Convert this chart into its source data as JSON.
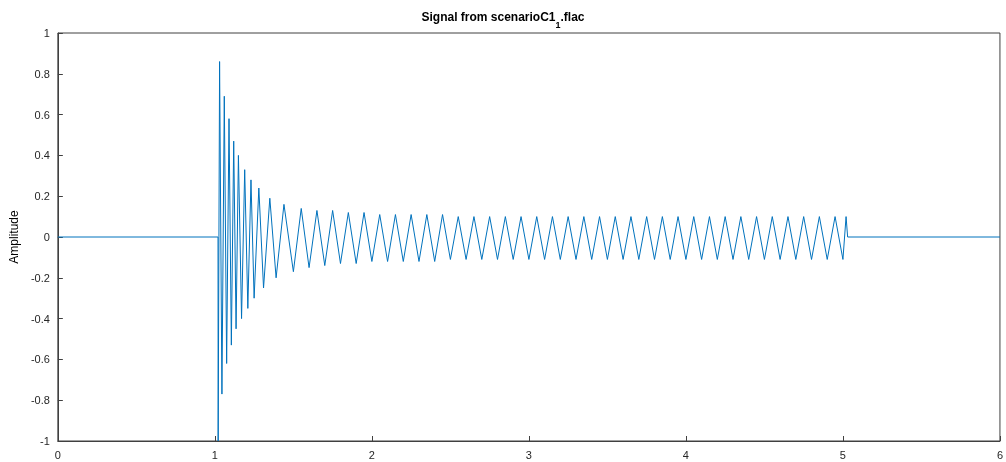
{
  "chart_data": {
    "type": "line",
    "title": "Signal from scenarioC1$_{1}$.flac",
    "ylabel": "Amplitude",
    "xlim": [
      0,
      6
    ],
    "xticks": [
      0,
      1,
      2,
      3,
      4,
      5,
      6
    ],
    "ylim": [
      -1,
      1
    ],
    "yticks": [
      -1,
      -0.8,
      -0.6,
      -0.4,
      -0.2,
      0,
      0.2,
      0.4,
      0.6,
      0.8,
      1
    ],
    "marker": "none",
    "line_style": "solid",
    "series": [
      {
        "color": "#0072bd",
        "x": [
          0,
          1.02,
          1.021,
          1.03,
          1.045,
          1.06,
          1.075,
          1.09,
          1.105,
          1.12,
          1.135,
          1.15,
          1.17,
          1.19,
          1.21,
          1.23,
          1.25,
          1.28,
          1.31,
          1.35,
          1.39,
          1.44,
          1.5,
          1.55,
          1.6,
          1.65,
          1.7,
          1.75,
          1.8,
          1.85,
          1.9,
          1.95,
          2.0,
          2.05,
          2.1,
          2.15,
          2.2,
          2.25,
          2.3,
          2.35,
          2.4,
          2.45,
          2.5,
          2.55,
          2.6,
          2.65,
          2.7,
          2.75,
          2.8,
          2.85,
          2.9,
          2.95,
          3.0,
          3.05,
          3.1,
          3.15,
          3.2,
          3.25,
          3.3,
          3.35,
          3.4,
          3.45,
          3.5,
          3.55,
          3.6,
          3.65,
          3.7,
          3.75,
          3.8,
          3.85,
          3.9,
          3.95,
          4.0,
          4.05,
          4.1,
          4.15,
          4.2,
          4.25,
          4.3,
          4.35,
          4.4,
          4.45,
          4.5,
          4.55,
          4.6,
          4.65,
          4.7,
          4.75,
          4.8,
          4.85,
          4.9,
          4.95,
          5.0,
          5.02,
          5.03,
          6
        ],
        "values": [
          0,
          0,
          -1.0,
          0.86,
          -0.77,
          0.69,
          -0.62,
          0.58,
          -0.53,
          0.47,
          -0.45,
          0.4,
          -0.4,
          0.33,
          -0.35,
          0.28,
          -0.3,
          0.24,
          -0.25,
          0.19,
          -0.2,
          0.16,
          -0.17,
          0.14,
          -0.15,
          0.13,
          -0.14,
          0.13,
          -0.13,
          0.12,
          -0.13,
          0.12,
          -0.12,
          0.11,
          -0.12,
          0.11,
          -0.12,
          0.11,
          -0.12,
          0.11,
          -0.12,
          0.11,
          -0.11,
          0.1,
          -0.11,
          0.1,
          -0.11,
          0.1,
          -0.11,
          0.1,
          -0.11,
          0.1,
          -0.11,
          0.1,
          -0.11,
          0.1,
          -0.11,
          0.1,
          -0.11,
          0.1,
          -0.11,
          0.1,
          -0.11,
          0.1,
          -0.11,
          0.1,
          -0.11,
          0.1,
          -0.11,
          0.1,
          -0.11,
          0.1,
          -0.11,
          0.1,
          -0.11,
          0.1,
          -0.11,
          0.1,
          -0.11,
          0.1,
          -0.11,
          0.1,
          -0.11,
          0.1,
          -0.11,
          0.1,
          -0.11,
          0.1,
          -0.11,
          0.1,
          -0.11,
          0.1,
          -0.11,
          0.1,
          0,
          0
        ]
      }
    ]
  }
}
